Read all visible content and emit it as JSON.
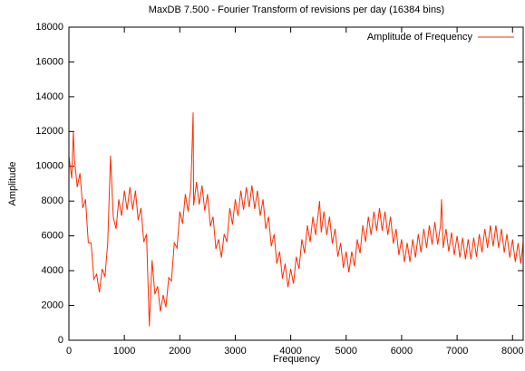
{
  "chart_data": {
    "type": "line",
    "title": "MaxDB 7.500 - Fourier Transform of revisions per day (16384 bins)",
    "x_label": "Frequency",
    "y_label": "Amplitude",
    "xlim": [
      0,
      8192
    ],
    "ylim": [
      0,
      18000
    ],
    "xticks": [
      0,
      1000,
      2000,
      3000,
      4000,
      5000,
      6000,
      7000,
      8000
    ],
    "yticks": [
      0,
      2000,
      4000,
      6000,
      8000,
      10000,
      12000,
      14000,
      16000,
      18000
    ],
    "grid": false,
    "legend": "top-right",
    "x": [
      0,
      50,
      80,
      100,
      150,
      200,
      250,
      300,
      350,
      400,
      450,
      500,
      550,
      600,
      650,
      700,
      750,
      800,
      850,
      900,
      950,
      1000,
      1050,
      1100,
      1150,
      1200,
      1250,
      1300,
      1350,
      1400,
      1450,
      1500,
      1550,
      1600,
      1650,
      1700,
      1750,
      1800,
      1850,
      1900,
      1950,
      2000,
      2050,
      2100,
      2150,
      2200,
      2240,
      2250,
      2300,
      2350,
      2400,
      2450,
      2500,
      2550,
      2600,
      2650,
      2700,
      2750,
      2800,
      2850,
      2900,
      2950,
      3000,
      3050,
      3100,
      3150,
      3200,
      3250,
      3300,
      3350,
      3400,
      3450,
      3500,
      3550,
      3600,
      3650,
      3700,
      3750,
      3800,
      3850,
      3900,
      3950,
      4000,
      4050,
      4100,
      4150,
      4200,
      4250,
      4300,
      4350,
      4400,
      4450,
      4500,
      4520,
      4550,
      4600,
      4650,
      4700,
      4750,
      4800,
      4850,
      4900,
      4950,
      5000,
      5050,
      5100,
      5150,
      5200,
      5250,
      5300,
      5350,
      5400,
      5450,
      5500,
      5550,
      5600,
      5650,
      5700,
      5750,
      5800,
      5850,
      5900,
      5950,
      6000,
      6050,
      6100,
      6150,
      6200,
      6250,
      6300,
      6350,
      6400,
      6450,
      6500,
      6550,
      6600,
      6650,
      6700,
      6720,
      6750,
      6800,
      6850,
      6900,
      6950,
      7000,
      7050,
      7100,
      7150,
      7200,
      7250,
      7300,
      7350,
      7400,
      7450,
      7500,
      7550,
      7600,
      7650,
      7700,
      7750,
      7800,
      7850,
      7900,
      7950,
      8000,
      8050,
      8100,
      8150,
      8190
    ],
    "series": [
      {
        "name": "Amplitude of Frequency",
        "color": "#ff2a00",
        "values": [
          10600,
          9300,
          12000,
          10400,
          8800,
          9600,
          7600,
          8100,
          5600,
          5600,
          3500,
          3800,
          2750,
          4100,
          3650,
          5600,
          10600,
          7100,
          6400,
          8100,
          7150,
          8600,
          7500,
          8800,
          7500,
          8600,
          6900,
          7600,
          5650,
          6100,
          800,
          4600,
          2650,
          3100,
          1650,
          2600,
          1900,
          3600,
          3400,
          5600,
          5300,
          7400,
          6700,
          8400,
          7400,
          8800,
          13100,
          7750,
          9100,
          7800,
          8900,
          7450,
          8400,
          6550,
          7100,
          5250,
          5800,
          4750,
          6100,
          5650,
          7600,
          6650,
          8100,
          7150,
          8600,
          7500,
          8800,
          7650,
          8900,
          7550,
          8600,
          7150,
          8100,
          6400,
          7100,
          5400,
          6100,
          4400,
          5100,
          3550,
          4400,
          3050,
          4100,
          3250,
          4800,
          4100,
          5800,
          5000,
          6600,
          5650,
          7100,
          6050,
          7400,
          8000,
          6200,
          7400,
          6050,
          7100,
          5550,
          6400,
          4800,
          5600,
          4150,
          5100,
          3900,
          5100,
          4250,
          5800,
          5000,
          6600,
          5650,
          7100,
          6050,
          7400,
          6300,
          7600,
          6300,
          7400,
          6050,
          7100,
          5550,
          6400,
          4900,
          5800,
          4500,
          5600,
          4500,
          5800,
          4750,
          6100,
          5050,
          6400,
          5300,
          6600,
          5500,
          6800,
          5500,
          6600,
          8100,
          5300,
          6400,
          5100,
          6200,
          4900,
          6000,
          4750,
          5900,
          4650,
          5800,
          4650,
          5900,
          4800,
          6100,
          5050,
          6400,
          5300,
          6600,
          5400,
          6600,
          5300,
          6400,
          5050,
          6100,
          4750,
          5800,
          4500,
          5600,
          4400,
          5600
        ]
      }
    ]
  }
}
